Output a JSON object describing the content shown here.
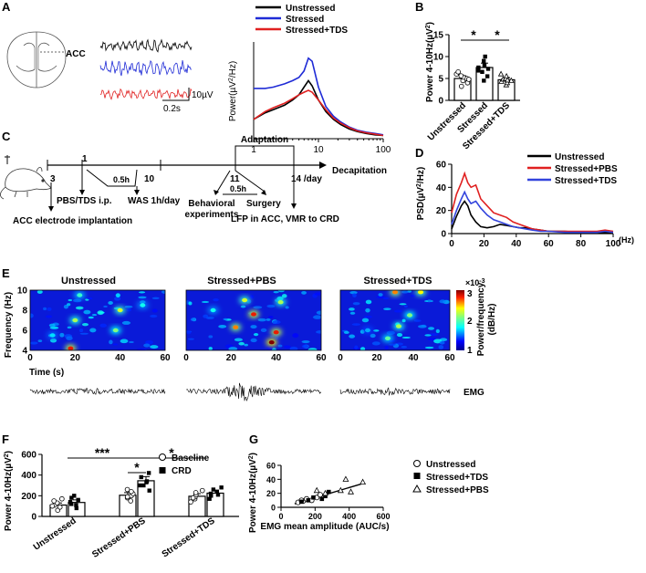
{
  "panels": {
    "A": {
      "label": "A",
      "region_label": "ACC",
      "scale_voltage": "10µV",
      "scale_time": "0.2s",
      "legend": [
        "Unstressed",
        "Stressed",
        "Stressed+TDS"
      ],
      "colors": [
        "#000000",
        "#1f2bd6",
        "#e02020"
      ],
      "ylabel_main": "Power(µV",
      "ylabel_sup": "2",
      "ylabel_end": "/Hz)",
      "xticks": [
        "1",
        "10",
        "100"
      ]
    },
    "B": {
      "label": "B",
      "ylabel_main": "Power 4-10Hz(µV",
      "ylabel_sup": "2",
      "ylabel_end": ")",
      "categories": [
        "Unstressed",
        "Stressed",
        "Stressed+TDS"
      ],
      "yticks": [
        "0",
        "5",
        "10",
        "15"
      ],
      "sig": [
        "*",
        "*"
      ]
    },
    "C": {
      "label": "C",
      "days": [
        "3",
        "1",
        "10",
        "11",
        "14 /day"
      ],
      "adaptation": "Adaptation",
      "decapitation": "Decapitation",
      "injection": "PBS/TDS i.p.",
      "half_hour_1": "0.5h",
      "was": "WAS 1h/day",
      "implantation": "ACC electrode implantation",
      "half_hour_2": "0.5h",
      "behavioral_1": "Behavioral",
      "behavioral_2": "experiments",
      "surgery": "Surgery",
      "lfp": "LFP in ACC, VMR to CRD"
    },
    "D": {
      "label": "D",
      "legend": [
        "Unstressed",
        "Stressed+PBS",
        "Stressed+TDS"
      ],
      "colors": [
        "#000000",
        "#e02020",
        "#3344dd"
      ],
      "ylabel_main": "PSD(µV",
      "ylabel_sup": "2",
      "ylabel_end": "/Hz)",
      "xticks": [
        "0",
        "20",
        "40",
        "60",
        "80",
        "100"
      ],
      "yticks": [
        "0",
        "20",
        "40",
        "60"
      ],
      "xunit": "(Hz)"
    },
    "E": {
      "label": "E",
      "titles": [
        "Unstressed",
        "Stressed+PBS",
        "Stressed+TDS"
      ],
      "ylabel": "Frequency (Hz)",
      "yticks": [
        "4",
        "6",
        "8",
        "10"
      ],
      "xticks": [
        "0",
        "20",
        "40",
        "60"
      ],
      "xlabel": "Time (s)",
      "colorbar_ticks": [
        "1",
        "2",
        "3"
      ],
      "colorbar_exp": "×10",
      "colorbar_exp_sup": "-3",
      "colorbar_label_1": "Power/frequency",
      "colorbar_label_2": "(dB/Hz)",
      "emg": "EMG"
    },
    "F": {
      "label": "F",
      "ylabel_main": "Power 4-10Hz(µV",
      "ylabel_sup": "2",
      "ylabel_end": ")",
      "categories": [
        "Unstressed",
        "Stressed+PBS",
        "Stressed+TDS"
      ],
      "legend": [
        "Baseline",
        "CRD"
      ],
      "yticks": [
        "0",
        "200",
        "400",
        "600"
      ],
      "sig": [
        "***",
        "*",
        "*"
      ]
    },
    "G": {
      "label": "G",
      "ylabel_main": "Power 4-10Hz(µV",
      "ylabel_sup": "2",
      "ylabel_end": ")",
      "xlabel": "EMG mean amplitude (AUC/s)",
      "xticks": [
        "0",
        "200",
        "400",
        "600"
      ],
      "yticks": [
        "0",
        "20",
        "40",
        "60"
      ],
      "legend": [
        "Unstressed",
        "Stressed+TDS",
        "Stressed+PBS"
      ]
    }
  },
  "chart_data": [
    {
      "id": "A",
      "type": "line",
      "xscale": "log",
      "xlim": [
        1,
        100
      ],
      "x": [
        1,
        1.5,
        2,
        3,
        4,
        5,
        6,
        7,
        8,
        10,
        13,
        17,
        22,
        30,
        40,
        55,
        75,
        100
      ],
      "series": [
        {
          "name": "Unstressed",
          "values": [
            0.3,
            0.4,
            0.45,
            0.52,
            0.6,
            0.68,
            0.8,
            0.9,
            0.82,
            0.6,
            0.42,
            0.3,
            0.22,
            0.15,
            0.11,
            0.08,
            0.06,
            0.05
          ]
        },
        {
          "name": "Stressed",
          "values": [
            0.78,
            0.78,
            0.8,
            0.85,
            0.9,
            0.95,
            1.05,
            1.25,
            1.2,
            0.8,
            0.5,
            0.35,
            0.26,
            0.18,
            0.13,
            0.1,
            0.08,
            0.06
          ]
        },
        {
          "name": "Stressed+TDS",
          "values": [
            0.3,
            0.42,
            0.48,
            0.55,
            0.62,
            0.68,
            0.72,
            0.75,
            0.72,
            0.6,
            0.45,
            0.32,
            0.24,
            0.17,
            0.12,
            0.09,
            0.07,
            0.05
          ]
        }
      ],
      "ylim": [
        0,
        1.5
      ]
    },
    {
      "id": "B",
      "type": "bar",
      "categories": [
        "Unstressed",
        "Stressed",
        "Stressed+TDS"
      ],
      "values": [
        5.0,
        7.5,
        4.7
      ],
      "errors": [
        0.6,
        1.0,
        0.5
      ],
      "points": [
        [
          3.2,
          4.0,
          4.5,
          5.0,
          5.3,
          5.6,
          6.0,
          6.5,
          4.8
        ],
        [
          4.5,
          5.5,
          6.5,
          7.5,
          8.0,
          9.0,
          10.0,
          6.8,
          7.2
        ],
        [
          3.5,
          4.0,
          4.3,
          4.8,
          5.0,
          5.5,
          6.0,
          4.5,
          4.6
        ]
      ],
      "ylim": [
        0,
        15
      ],
      "markers": [
        "circle",
        "square",
        "triangle"
      ]
    },
    {
      "id": "D",
      "type": "line",
      "xlim": [
        0,
        100
      ],
      "ylim": [
        0,
        60
      ],
      "x": [
        0,
        3,
        6,
        8,
        10,
        12,
        15,
        18,
        22,
        26,
        30,
        34,
        38,
        42,
        46,
        50,
        55,
        60,
        70,
        80,
        90,
        95,
        100
      ],
      "series": [
        {
          "name": "Unstressed",
          "values": [
            4,
            15,
            24,
            28,
            24,
            16,
            10,
            6,
            5,
            6,
            8,
            7,
            6,
            5,
            5,
            4,
            3,
            2,
            2,
            1,
            1,
            1,
            1
          ]
        },
        {
          "name": "Stressed+PBS",
          "values": [
            18,
            34,
            44,
            52,
            44,
            40,
            42,
            30,
            24,
            18,
            16,
            14,
            10,
            8,
            6,
            4,
            3,
            2,
            2,
            2,
            2,
            3,
            2
          ]
        },
        {
          "name": "Stressed+TDS",
          "values": [
            8,
            20,
            30,
            36,
            30,
            26,
            28,
            22,
            16,
            12,
            10,
            8,
            6,
            5,
            4,
            3,
            2,
            2,
            1,
            1,
            1,
            2,
            1
          ]
        }
      ]
    },
    {
      "id": "F",
      "type": "bar",
      "categories": [
        "Unstressed",
        "Stressed+PBS",
        "Stressed+TDS"
      ],
      "series": [
        {
          "name": "Baseline",
          "values": [
            110,
            205,
            195
          ],
          "errors": [
            20,
            25,
            25
          ]
        },
        {
          "name": "CRD",
          "values": [
            135,
            345,
            225
          ],
          "errors": [
            25,
            40,
            25
          ]
        }
      ],
      "points": [
        [
          [
            60,
            90,
            110,
            130,
            150,
            100,
            170
          ],
          [
            80,
            110,
            140,
            160,
            180,
            120,
            200
          ]
        ],
        [
          [
            150,
            180,
            200,
            220,
            240,
            260,
            190
          ],
          [
            250,
            300,
            340,
            380,
            420,
            330,
            300
          ]
        ],
        [
          [
            140,
            170,
            190,
            210,
            230,
            250,
            180
          ],
          [
            170,
            200,
            220,
            240,
            260,
            280,
            210
          ]
        ]
      ],
      "ylim": [
        0,
        600
      ]
    },
    {
      "id": "G",
      "type": "scatter",
      "xlim": [
        0,
        600
      ],
      "ylim": [
        0,
        60
      ],
      "series": [
        {
          "name": "Unstressed",
          "marker": "circle",
          "x": [
            100,
            130,
            150,
            180,
            210,
            230,
            120
          ],
          "y": [
            7,
            9,
            12,
            10,
            14,
            18,
            10
          ]
        },
        {
          "name": "Stressed+TDS",
          "marker": "square",
          "x": [
            120,
            160,
            190,
            240,
            260,
            280
          ],
          "y": [
            8,
            10,
            14,
            12,
            16,
            22
          ]
        },
        {
          "name": "Stressed+PBS",
          "marker": "triangle",
          "x": [
            210,
            260,
            350,
            380,
            410,
            480
          ],
          "y": [
            24,
            20,
            24,
            40,
            22,
            36
          ]
        }
      ],
      "fit": {
        "x": [
          80,
          480
        ],
        "y": [
          5,
          34
        ]
      }
    },
    {
      "id": "E",
      "type": "heatmap",
      "titles": [
        "Unstressed",
        "Stressed+PBS",
        "Stressed+TDS"
      ],
      "xlim": [
        0,
        60
      ],
      "ylim": [
        4,
        10
      ],
      "clim": [
        1,
        3
      ],
      "hotspots": [
        [
          [
            18,
            4.2,
            2.8
          ],
          [
            20,
            7,
            2.2
          ],
          [
            40,
            8,
            2.3
          ],
          [
            38,
            6,
            2.1
          ],
          [
            22,
            9.5,
            1.9
          ],
          [
            10,
            5.5,
            1.7
          ],
          [
            50,
            8.5,
            1.8
          ]
        ],
        [
          [
            30,
            7.6,
            2.8
          ],
          [
            38,
            4.8,
            3.0
          ],
          [
            40,
            5.8,
            2.8
          ],
          [
            22,
            6.3,
            2.6
          ],
          [
            26,
            9,
            2.3
          ],
          [
            42,
            8.8,
            2.2
          ],
          [
            12,
            8,
            1.8
          ]
        ],
        [
          [
            30,
            9.8,
            2.6
          ],
          [
            32,
            6.4,
            2.2
          ],
          [
            26,
            5.2,
            2.0
          ],
          [
            38,
            7.5,
            2.1
          ],
          [
            44,
            9.8,
            2.4
          ],
          [
            15,
            6,
            1.6
          ]
        ]
      ]
    }
  ]
}
